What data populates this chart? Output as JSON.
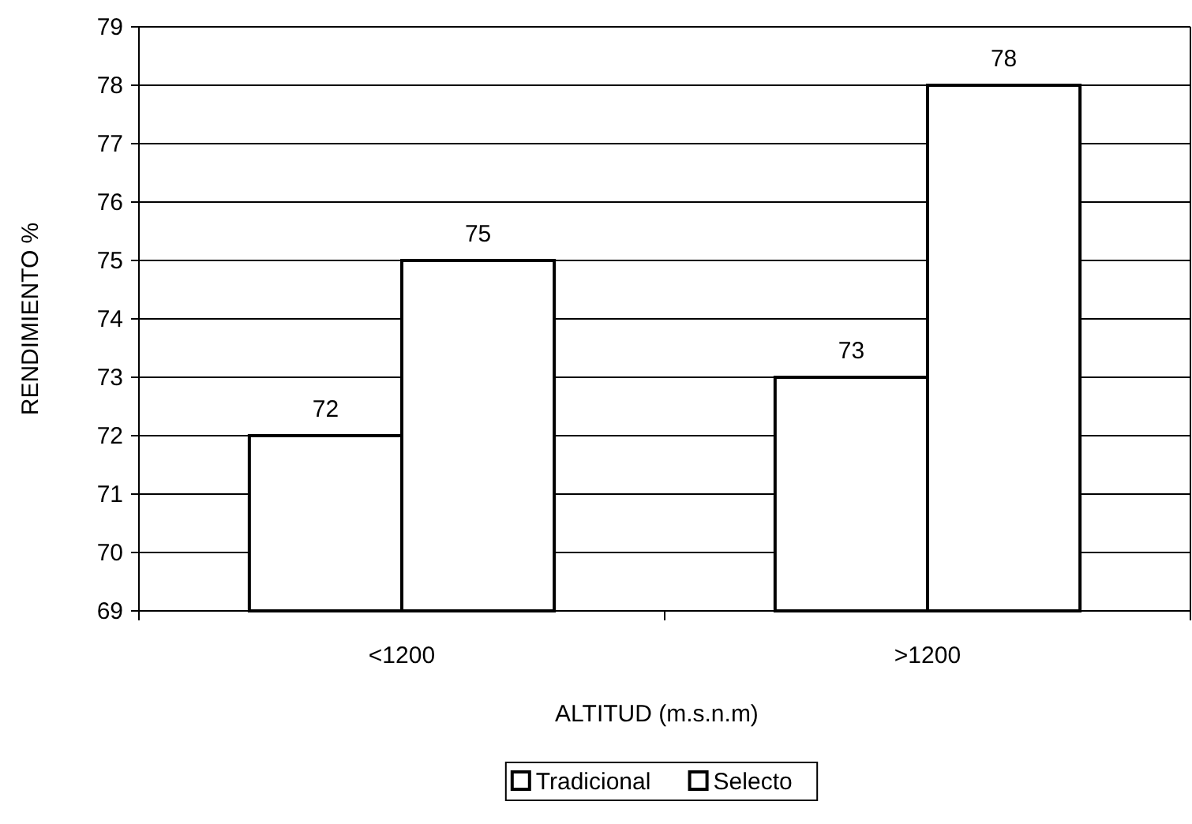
{
  "chart_data": {
    "type": "bar",
    "xlabel": "ALTITUD (m.s.n.m)",
    "ylabel": "RENDIMIENTO %",
    "categories": [
      "<1200",
      ">1200"
    ],
    "series": [
      {
        "name": "Tradicional",
        "color": "#ffffff",
        "values": [
          72,
          73
        ]
      },
      {
        "name": "Selecto",
        "color": "#ffffff",
        "values": [
          75,
          78
        ]
      }
    ],
    "ylim": [
      69,
      79
    ],
    "yticks": [
      69,
      70,
      71,
      72,
      73,
      74,
      75,
      76,
      77,
      78,
      79
    ],
    "grid": "y",
    "data_labels": true,
    "legend": "bottom"
  }
}
